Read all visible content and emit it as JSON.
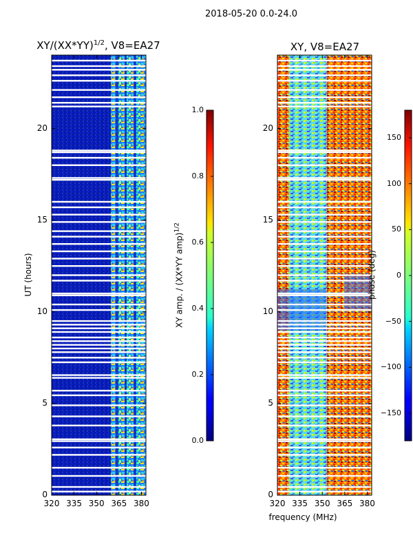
{
  "suptitle": "2018-05-20 0.0-24.0",
  "chart_data": [
    {
      "type": "heatmap",
      "title": "XY/(XX*YY)^1/2, V8=EA27",
      "title_main": "XY/(XX*YY)",
      "title_exp": "1/2",
      "title_suffix": ", V8=EA27",
      "xlabel": "",
      "ylabel": "UT (hours)",
      "xlim": [
        320,
        383
      ],
      "ylim": [
        0,
        24
      ],
      "xticks": [
        320,
        335,
        350,
        365,
        380
      ],
      "yticks": [
        0,
        5,
        10,
        15,
        20
      ],
      "colorbar": {
        "label": "XY amp. / (XX*YY amp)^1/2",
        "label_main": "XY amp. / (XX*YY amp)",
        "label_exp": "1/2",
        "range": [
          0.0,
          1.0
        ],
        "ticks": [
          "0.0",
          "0.2",
          "0.4",
          "0.6",
          "0.8",
          "1.0"
        ],
        "colormap": "jet"
      },
      "bright_band_mhz": [
        360,
        382
      ],
      "flagged_ut_hours": [
        0.2,
        0.45,
        1.05,
        1.5,
        2.2,
        2.6,
        2.95,
        3.05,
        3.8,
        4.3,
        4.9,
        5.45,
        5.7,
        6.4,
        6.55,
        7.25,
        7.5,
        7.8,
        8.0,
        8.2,
        8.4,
        8.6,
        8.9,
        9.1,
        9.3,
        9.5,
        10.1,
        10.4,
        10.9,
        11.0,
        11.7,
        12.0,
        12.5,
        12.9,
        13.3,
        13.7,
        14.1,
        14.4,
        14.9,
        15.3,
        15.7,
        16.0,
        17.2,
        17.3,
        18.0,
        18.4,
        18.7,
        18.8,
        21.2,
        21.4,
        21.7,
        22.1,
        22.6,
        22.9,
        23.2,
        23.4,
        23.7
      ]
    },
    {
      "type": "heatmap",
      "title": "XY, V8=EA27",
      "xlabel": "frequency (MHz)",
      "ylabel": "",
      "xlim": [
        320,
        383
      ],
      "ylim": [
        0,
        24
      ],
      "xticks": [
        320,
        335,
        350,
        365,
        380
      ],
      "yticks": [
        0,
        5,
        10,
        15,
        20
      ],
      "colorbar": {
        "label": "phase (deg)",
        "range": [
          -180,
          180
        ],
        "ticks": [
          "−150",
          "−100",
          "−50",
          "0",
          "50",
          "100",
          "150"
        ],
        "tick_values": [
          -150,
          -100,
          -50,
          0,
          50,
          100,
          150
        ],
        "colormap": "jet"
      },
      "flagged_ut_hours": [
        0.2,
        0.45,
        1.05,
        1.5,
        2.2,
        2.6,
        2.95,
        3.05,
        3.8,
        4.3,
        4.9,
        5.45,
        5.7,
        6.4,
        6.55,
        7.25,
        7.5,
        7.8,
        8.0,
        8.2,
        8.4,
        8.6,
        8.9,
        9.1,
        9.3,
        9.5,
        10.1,
        10.4,
        10.9,
        11.0,
        11.7,
        12.0,
        12.5,
        12.9,
        13.3,
        13.7,
        14.1,
        14.4,
        14.9,
        15.3,
        15.7,
        16.0,
        17.2,
        17.3,
        18.0,
        18.4,
        18.7,
        18.8,
        21.2,
        21.4,
        21.7,
        22.1,
        22.6,
        22.9,
        23.2,
        23.4,
        23.7
      ]
    }
  ]
}
